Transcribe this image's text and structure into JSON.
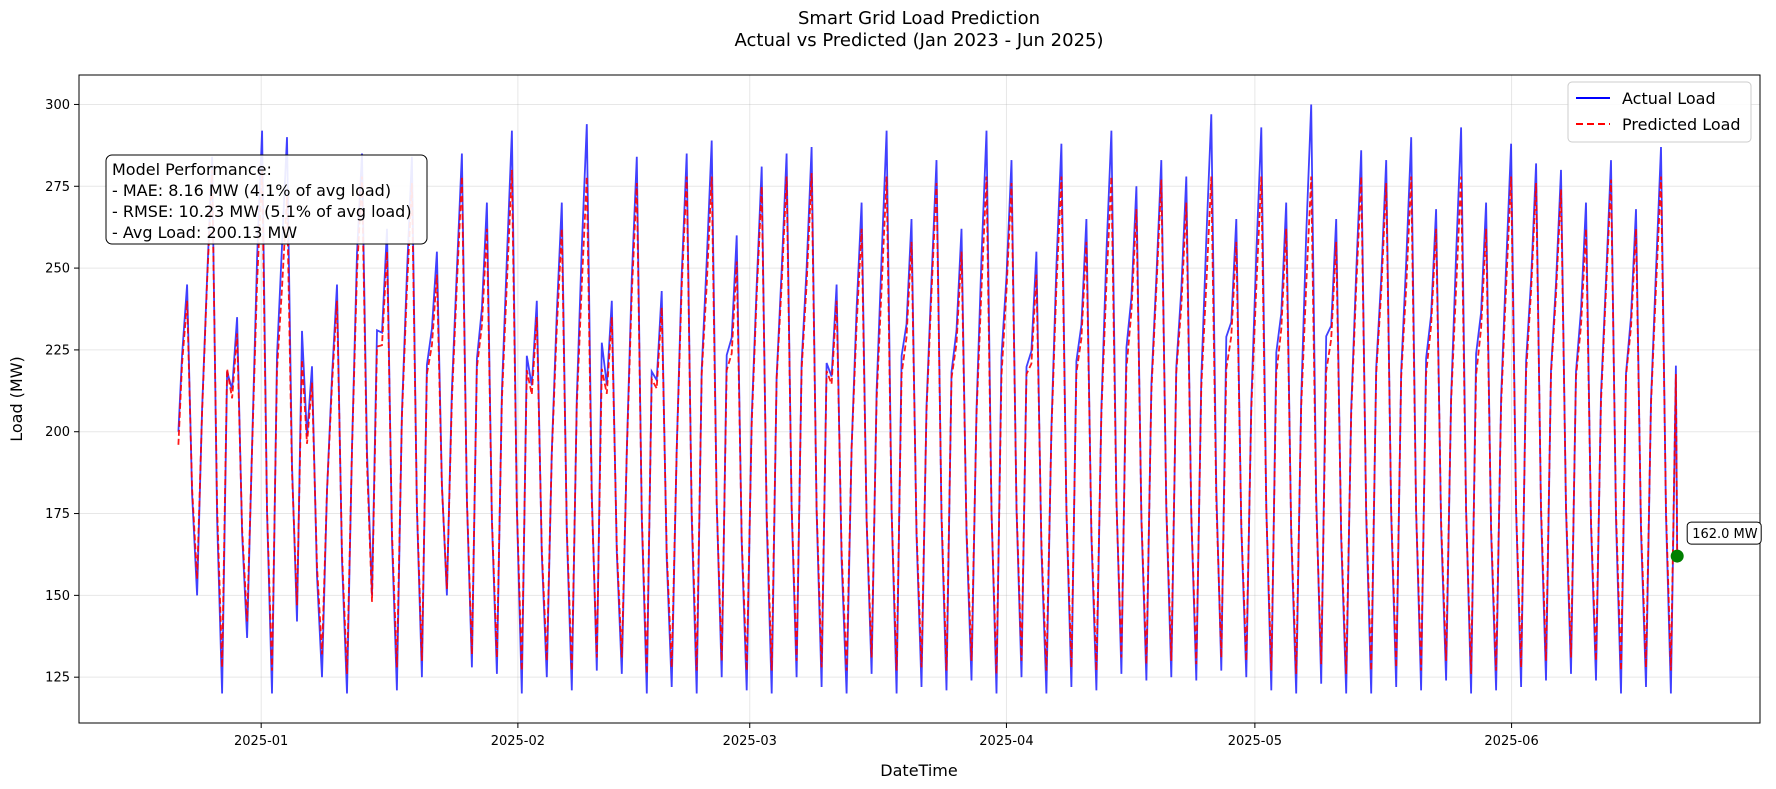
{
  "chart_data": {
    "type": "line",
    "title": "Smart Grid Load Prediction",
    "subtitle": "Actual vs Predicted (Jan 2023 - Jun 2025)",
    "xlabel": "DateTime",
    "ylabel": "Load (MW)",
    "x_range": [
      "2024-12-22",
      "2025-06-21"
    ],
    "xlim": [
      "2024-12-10",
      "2025-07-01"
    ],
    "ylim": [
      111,
      309
    ],
    "x_ticks": [
      "2025-01",
      "2025-02",
      "2025-03",
      "2025-04",
      "2025-05",
      "2025-06"
    ],
    "x_tick_dates": [
      "2025-01-01",
      "2025-02-01",
      "2025-03-01",
      "2025-04-01",
      "2025-05-01",
      "2025-06-01"
    ],
    "y_ticks": [
      125,
      150,
      175,
      200,
      225,
      250,
      275,
      300
    ],
    "grid": true,
    "legend_position": "top-right",
    "series": [
      {
        "name": "Actual Load",
        "color": "#0000ff",
        "style": "solid",
        "peaks": [
          245,
          284,
          235,
          292,
          290,
          220,
          245,
          285,
          262,
          284,
          255,
          285,
          270,
          292,
          240,
          270,
          294,
          240,
          284,
          243,
          285,
          289,
          260,
          281,
          285,
          287,
          245,
          270,
          292,
          265,
          283,
          262,
          292,
          283,
          255,
          288,
          265,
          292,
          275,
          283,
          278,
          297,
          265,
          293,
          270,
          300,
          265,
          286,
          283,
          290,
          268,
          293,
          270,
          288,
          282,
          280,
          270,
          283,
          268,
          287
        ],
        "troughs": [
          150,
          120,
          137,
          120,
          142,
          125,
          120,
          150,
          121,
          125,
          150,
          128,
          126,
          120,
          125,
          121,
          127,
          126,
          120,
          122,
          120,
          125,
          121,
          120,
          125,
          122,
          120,
          126,
          120,
          122,
          121,
          124,
          120,
          125,
          120,
          122,
          121,
          126,
          124,
          125,
          124,
          127,
          125,
          121,
          120,
          123,
          120,
          120,
          122,
          121,
          124,
          120,
          121,
          122,
          124,
          126,
          124,
          120,
          122,
          120
        ]
      },
      {
        "name": "Predicted Load",
        "color": "#ff0000",
        "style": "dashed",
        "peaks": [
          240,
          280,
          230,
          280,
          272,
          215,
          240,
          278,
          255,
          276,
          248,
          278,
          262,
          280,
          235,
          262,
          278,
          235,
          276,
          238,
          278,
          278,
          252,
          275,
          278,
          279,
          240,
          262,
          278,
          258,
          276,
          255,
          278,
          276,
          248,
          278,
          258,
          278,
          268,
          277,
          270,
          278,
          258,
          278,
          262,
          278,
          258,
          278,
          276,
          278,
          262,
          278,
          262,
          278,
          276,
          274,
          262,
          277,
          262,
          278
        ],
        "troughs": [
          155,
          128,
          142,
          127,
          147,
          132,
          126,
          148,
          128,
          130,
          152,
          132,
          131,
          127,
          130,
          127,
          131,
          131,
          126,
          128,
          127,
          130,
          127,
          127,
          130,
          128,
          127,
          131,
          127,
          128,
          127,
          130,
          126,
          130,
          127,
          128,
          127,
          131,
          129,
          130,
          129,
          131,
          130,
          127,
          126,
          129,
          126,
          127,
          128,
          127,
          130,
          126,
          127,
          128,
          130,
          131,
          130,
          127,
          128,
          127
        ]
      }
    ],
    "last_point": {
      "date": "2025-06-21",
      "value": 162.0,
      "label": "162.0 MW",
      "color": "#007f00"
    }
  },
  "performance_box": {
    "line1": "Model Performance:",
    "line2": "- MAE: 8.16 MW (4.1% of avg load)",
    "line3": "- RMSE: 10.23 MW (5.1% of avg load)",
    "line4": "- Avg Load: 200.13 MW"
  }
}
